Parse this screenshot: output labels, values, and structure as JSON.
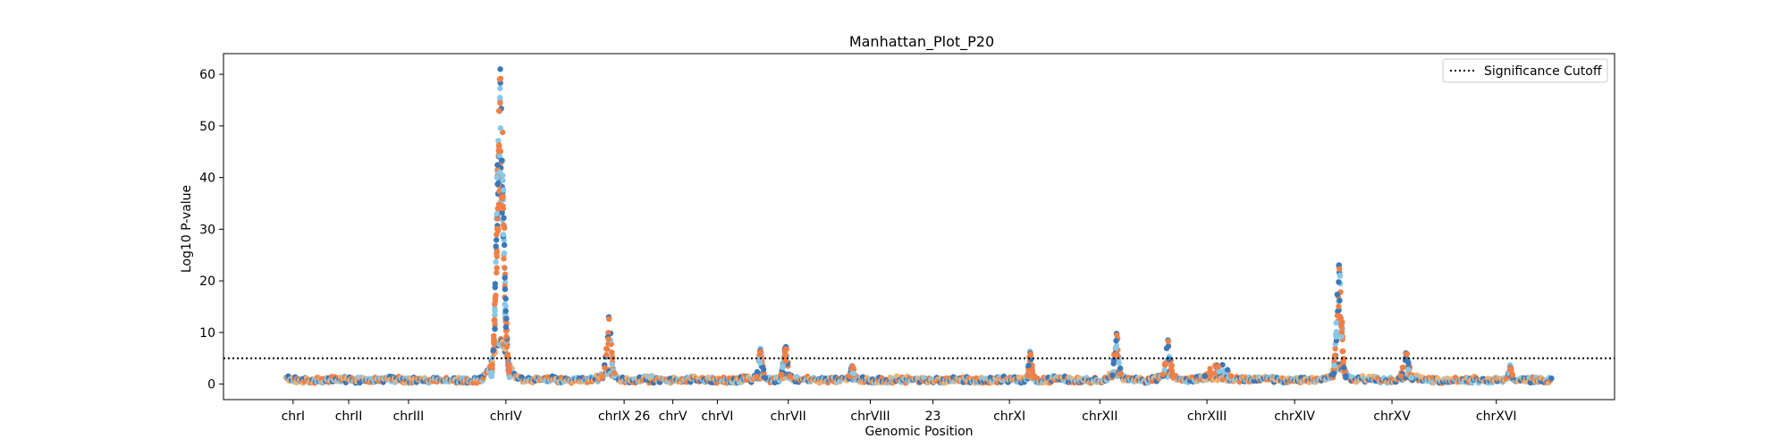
{
  "chart_data": {
    "type": "scatter",
    "title": "Manhattan_Plot_P20",
    "xlabel": "Genomic Position",
    "ylabel": "Log10 P-value",
    "xlim": [
      0,
      100
    ],
    "ylim": [
      -3,
      64
    ],
    "yticks": [
      0,
      10,
      20,
      30,
      40,
      50,
      60
    ],
    "xticks": [
      {
        "pos": 5.0,
        "label": "chrI"
      },
      {
        "pos": 9.0,
        "label": "chrII"
      },
      {
        "pos": 13.3,
        "label": "chrIII"
      },
      {
        "pos": 20.3,
        "label": "chrIV"
      },
      {
        "pos": 28.8,
        "label": "chrIX 26"
      },
      {
        "pos": 32.3,
        "label": "chrV"
      },
      {
        "pos": 35.5,
        "label": "chrVI"
      },
      {
        "pos": 40.6,
        "label": "chrVII"
      },
      {
        "pos": 46.5,
        "label": "chrVIII"
      },
      {
        "pos": 51.0,
        "label": "23"
      },
      {
        "pos": 56.5,
        "label": "chrXI"
      },
      {
        "pos": 63.0,
        "label": "chrXII"
      },
      {
        "pos": 70.7,
        "label": "chrXIII"
      },
      {
        "pos": 77.0,
        "label": "chrXIV"
      },
      {
        "pos": 84.0,
        "label": "chrXV"
      },
      {
        "pos": 91.5,
        "label": "chrXVI"
      }
    ],
    "grid": false,
    "legend": {
      "position": "top-right",
      "entries": [
        "Significance Cutoff"
      ]
    },
    "significance_cutoff": 5,
    "colors": {
      "blue": "#3a78b8",
      "orange": "#f08048",
      "light_blue": "#87c8e8",
      "tan": "#e8b47a",
      "cutoff_line": "#000000"
    },
    "baseline_range": [
      4.5,
      95.5
    ],
    "peaks": [
      {
        "x": 19.9,
        "height": 61,
        "sigma": 0.45,
        "label": "chrIV"
      },
      {
        "x": 27.7,
        "height": 13,
        "sigma": 0.35,
        "label": "chrIX"
      },
      {
        "x": 38.6,
        "height": 6.5,
        "sigma": 0.3,
        "label": "chrVI"
      },
      {
        "x": 40.4,
        "height": 7,
        "sigma": 0.3,
        "label": "chrVII"
      },
      {
        "x": 45.2,
        "height": 3.5,
        "sigma": 0.2,
        "label": "chrVIII"
      },
      {
        "x": 58.0,
        "height": 6,
        "sigma": 0.2,
        "label": "chrXI"
      },
      {
        "x": 64.2,
        "height": 9.8,
        "sigma": 0.3,
        "label": "chrXII"
      },
      {
        "x": 67.9,
        "height": 8.5,
        "sigma": 0.35,
        "label": "chrXIII"
      },
      {
        "x": 71.5,
        "height": 3.5,
        "sigma": 1.2,
        "label": "chrXIII"
      },
      {
        "x": 80.2,
        "height": 23,
        "sigma": 0.35,
        "label": "chrXIV"
      },
      {
        "x": 85.0,
        "height": 6,
        "sigma": 0.4,
        "label": "chrXV"
      },
      {
        "x": 92.5,
        "height": 3.2,
        "sigma": 0.2,
        "label": "chrXVI"
      }
    ]
  }
}
